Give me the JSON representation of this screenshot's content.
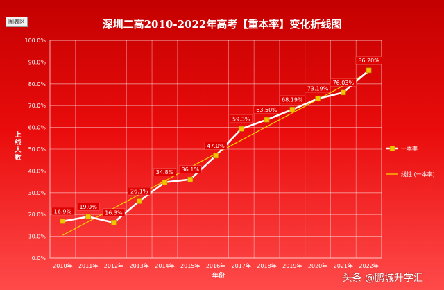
{
  "area_tag": "图表区",
  "watermark": "头条 @鹏城升学汇",
  "colors": {
    "background_top": "#c40000",
    "background_bottom": "#ff4a4a",
    "series_line": "#ffffff",
    "marker_fill": "#f2c400",
    "trendline": "#ffd400",
    "label_bg": "#e00000",
    "grid": "#ffffff"
  },
  "chart_data": {
    "type": "line",
    "title": "深圳二高2010-2022年高考【重本率】变化折线图",
    "xlabel": "年份",
    "ylabel": "上线人数",
    "categories": [
      "2010年",
      "2011年",
      "2012年",
      "2013年",
      "2014年",
      "2015年",
      "2016年",
      "2017年",
      "2018年",
      "2019年",
      "2020年",
      "2021年",
      "2022年"
    ],
    "series": [
      {
        "name": "一本率",
        "values": [
          16.9,
          19.0,
          16.3,
          26.1,
          34.8,
          36.1,
          47.0,
          59.3,
          63.5,
          68.19,
          73.19,
          76.03,
          86.2
        ],
        "data_labels": [
          "16.9%",
          "19.0%",
          "16.3%",
          "26.1%",
          "34.8%",
          "36.1%",
          "47.0%",
          "59.3%",
          "63.50%",
          "68.19%",
          "73.19%",
          "76.03%",
          "86.20%"
        ]
      }
    ],
    "trendline": {
      "name": "线性 (一本率)",
      "type": "linear"
    },
    "ylim": [
      0,
      100
    ],
    "yticks": [
      "0.0%",
      "10.0%",
      "20.0%",
      "30.0%",
      "40.0%",
      "50.0%",
      "60.0%",
      "70.0%",
      "80.0%",
      "90.0%",
      "100.0%"
    ],
    "grid": true,
    "legend_position": "right"
  }
}
